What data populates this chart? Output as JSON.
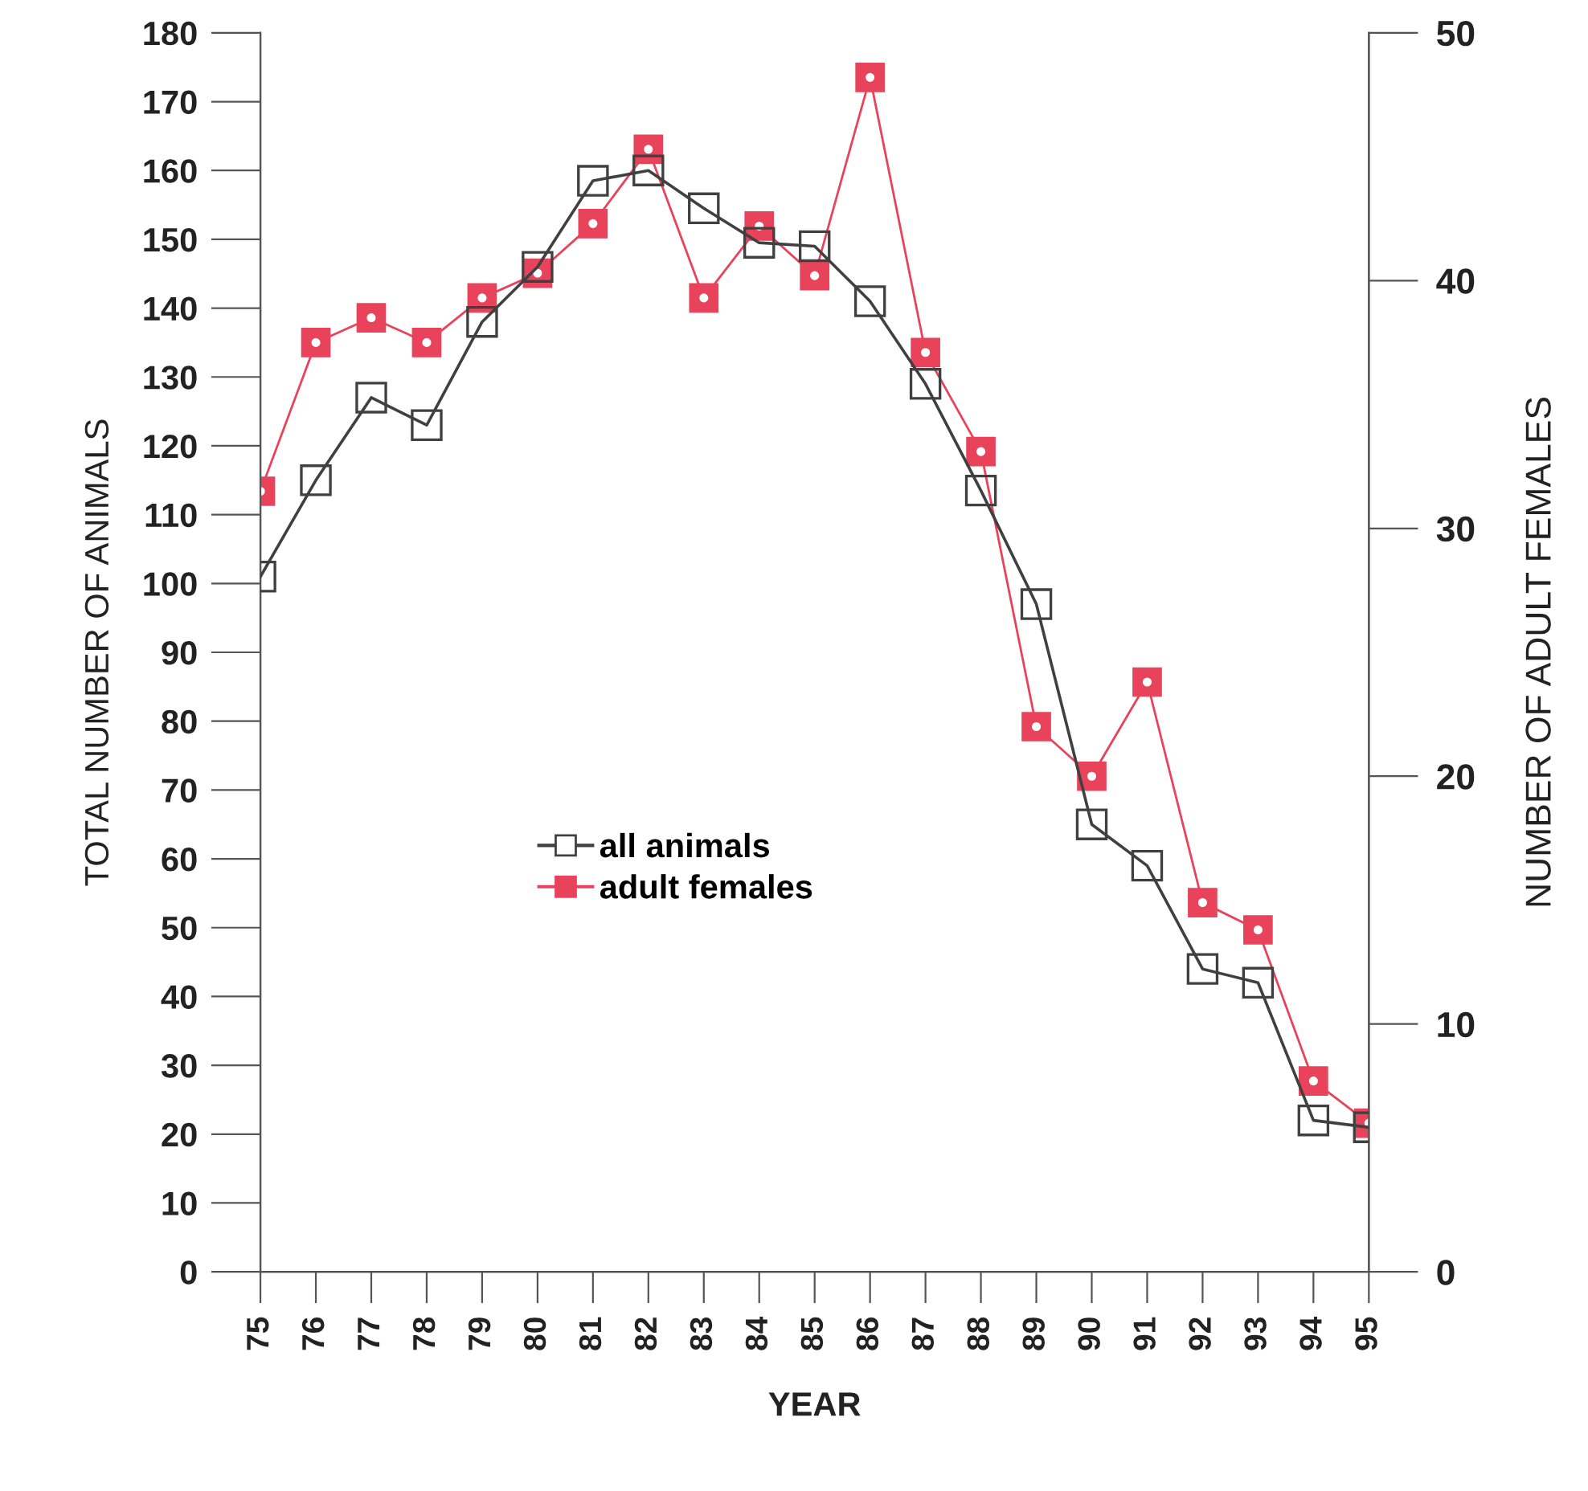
{
  "chart_data": {
    "type": "line",
    "xlabel": "YEAR",
    "ylabel": "TOTAL NUMBER OF ANIMALS",
    "y2label": "NUMBER OF ADULT FEMALES",
    "categories": [
      "75",
      "76",
      "77",
      "78",
      "79",
      "80",
      "81",
      "82",
      "83",
      "84",
      "85",
      "86",
      "87",
      "88",
      "89",
      "90",
      "91",
      "92",
      "93",
      "94",
      "95"
    ],
    "series": [
      {
        "name": "all animals",
        "color": "#404040",
        "marker": "square",
        "values": [
          101,
          115,
          127,
          123,
          138,
          146,
          158.5,
          160,
          154.5,
          149.5,
          149,
          141,
          129,
          113.5,
          97,
          65,
          59,
          44,
          42,
          22,
          21
        ]
      },
      {
        "name": "adult females",
        "color": "#e8435a",
        "marker": "square",
        "axis": "y2",
        "values": [
          31.5,
          37.5,
          38.5,
          37.5,
          39.3,
          40.3,
          42.3,
          45.3,
          39.3,
          42.2,
          40.2,
          48.2,
          37.1,
          33.1,
          22.0,
          20.0,
          23.8,
          14.9,
          13.8,
          7.7,
          6.0
        ]
      }
    ],
    "ylim": [
      0,
      180
    ],
    "yticks": [
      0,
      10,
      20,
      30,
      40,
      50,
      60,
      70,
      80,
      90,
      100,
      110,
      120,
      130,
      140,
      150,
      160,
      170,
      180
    ],
    "y2lim": [
      0,
      50
    ],
    "y2ticks": [
      0,
      10,
      20,
      30,
      40,
      50
    ],
    "grid": false,
    "legend": "center",
    "line_style": "solid"
  }
}
